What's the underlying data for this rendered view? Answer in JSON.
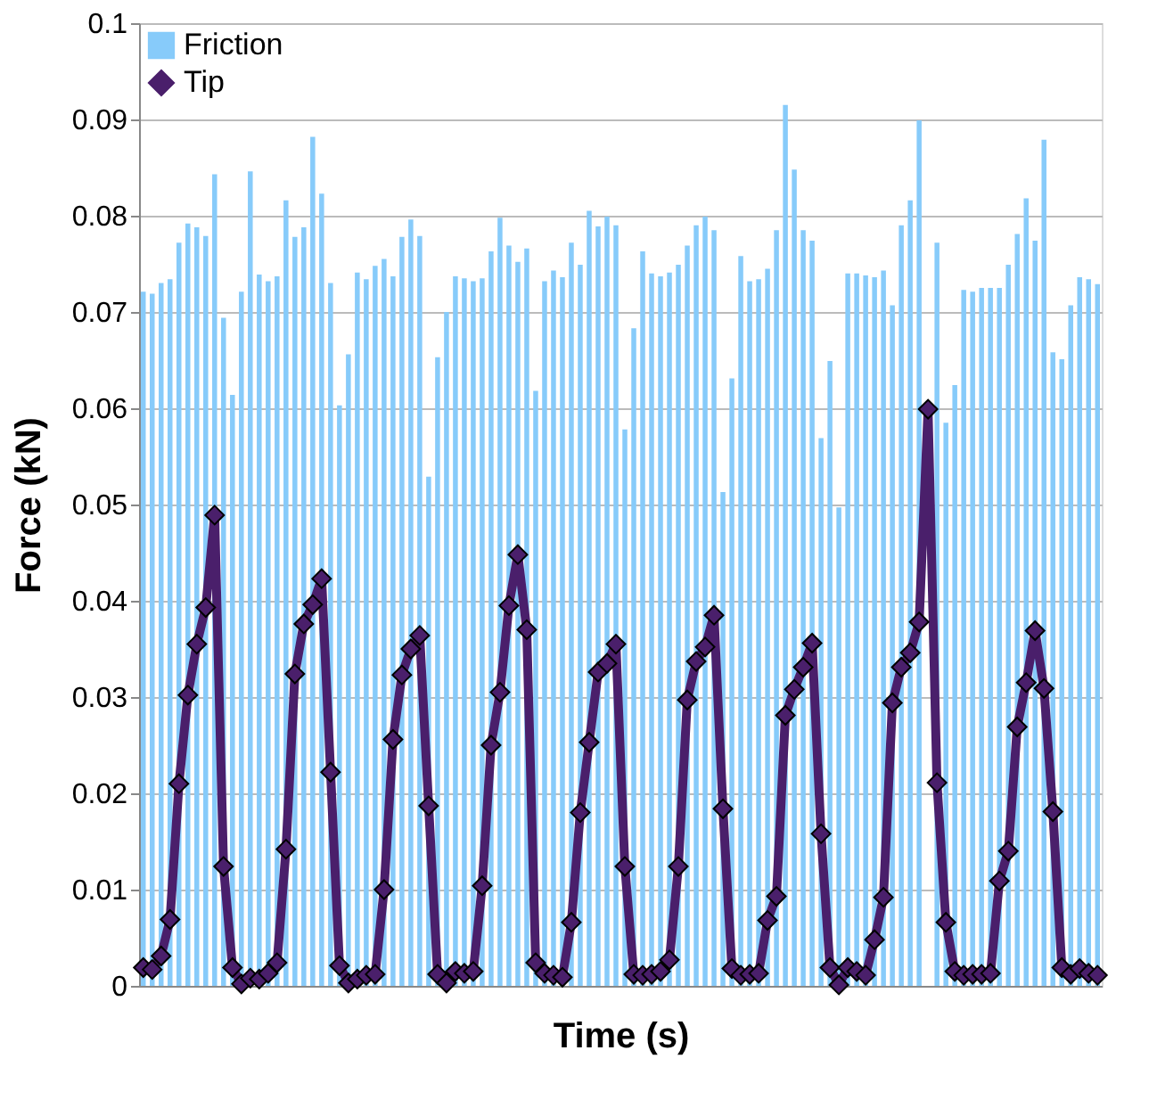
{
  "chart_data": {
    "type": "bar",
    "xlabel": "Time (s)",
    "ylabel": "Force (kN)",
    "categories": [
      null,
      null,
      null,
      null,
      null,
      null,
      null,
      null,
      null,
      null,
      null,
      null,
      null,
      null,
      null,
      null,
      null,
      null,
      null,
      null,
      null,
      null,
      null,
      null,
      null,
      null,
      null,
      null,
      null,
      null,
      null,
      null,
      null,
      null,
      null,
      null,
      null,
      null,
      null,
      null,
      null,
      null,
      null,
      null,
      null,
      null,
      null,
      null,
      null,
      null,
      null,
      null,
      null,
      null,
      null,
      null,
      null,
      null,
      null,
      null,
      null,
      null,
      null,
      null,
      null,
      null,
      null,
      null,
      null,
      null,
      null,
      null,
      null,
      null,
      null,
      null,
      null,
      null,
      null,
      null,
      null,
      null,
      null,
      null,
      null,
      null,
      null,
      null,
      null,
      null,
      null,
      null,
      null,
      null,
      null,
      null,
      null,
      null,
      null,
      null,
      null,
      null,
      null,
      null,
      null,
      null,
      null,
      null
    ],
    "series": [
      {
        "name": "Friction",
        "color": "#87cbfa",
        "values": [
          0.0721,
          0.0719,
          0.073,
          0.0734,
          0.0772,
          0.0792,
          0.0788,
          0.0779,
          0.0843,
          0.0694,
          0.0614,
          0.0721,
          0.0846,
          0.0739,
          0.0732,
          0.0737,
          0.0816,
          0.0778,
          0.0788,
          0.0882,
          0.0823,
          0.073,
          0.0603,
          0.0656,
          0.0741,
          0.0734,
          0.0748,
          0.0755,
          0.0737,
          0.0778,
          0.0796,
          0.0779,
          0.0529,
          0.0653,
          0.07,
          0.0737,
          0.0735,
          0.0732,
          0.0735,
          0.0763,
          0.0798,
          0.0769,
          0.0752,
          0.0766,
          0.0618,
          0.0732,
          0.0743,
          0.0736,
          0.0772,
          0.0749,
          0.0805,
          0.0789,
          0.0799,
          0.079,
          0.0578,
          0.0683,
          0.0763,
          0.074,
          0.0737,
          0.0741,
          0.0749,
          0.0769,
          0.079,
          0.0799,
          0.0785,
          0.0513,
          0.0631,
          0.0758,
          0.0732,
          0.0734,
          0.0745,
          0.0785,
          0.0915,
          0.0848,
          0.0785,
          0.0774,
          0.0569,
          0.0649,
          0.0497,
          0.074,
          0.074,
          0.0738,
          0.0736,
          0.0743,
          0.0707,
          0.079,
          0.0816,
          0.0899,
          null,
          0.0772,
          0.0585,
          0.0624,
          0.0723,
          0.0721,
          0.0725,
          0.0725,
          0.0725,
          0.0749,
          0.0781,
          0.0818,
          0.0774,
          0.0879,
          0.0658,
          0.0651,
          0.0707,
          0.0736,
          0.0734,
          0.0729
        ]
      },
      {
        "name": "Tip",
        "type": "line",
        "color": "#4a1f6b",
        "values": [
          0.0019,
          0.0017,
          0.0031,
          0.0069,
          0.021,
          0.0302,
          0.0355,
          0.0393,
          0.0489,
          0.0124,
          0.0019,
          0.0002,
          0.0008,
          0.0007,
          0.0013,
          0.0024,
          0.0142,
          0.0324,
          0.0376,
          0.0396,
          0.0423,
          0.0222,
          0.0021,
          0.0003,
          0.0007,
          0.0011,
          0.0012,
          0.01,
          0.0256,
          0.0323,
          0.035,
          0.0364,
          0.0187,
          0.0012,
          0.0003,
          0.0015,
          0.0013,
          0.0015,
          0.0104,
          0.025,
          0.0305,
          0.0395,
          0.0448,
          0.037,
          0.0024,
          0.0013,
          0.0011,
          0.0009,
          0.0066,
          0.018,
          0.0253,
          0.0326,
          0.0335,
          0.0355,
          0.0124,
          0.0012,
          0.0011,
          0.0012,
          0.0015,
          0.0027,
          0.0124,
          0.0297,
          0.0337,
          0.0352,
          0.0385,
          0.0184,
          0.0018,
          0.0011,
          0.0012,
          0.0013,
          0.0068,
          0.0093,
          0.0281,
          0.0308,
          0.0331,
          0.0356,
          0.0158,
          0.0019,
          0.0001,
          0.0019,
          0.0015,
          0.0011,
          0.0048,
          0.0092,
          0.0294,
          0.0331,
          0.0346,
          0.0378,
          0.0599,
          0.0211,
          0.0066,
          0.0015,
          0.0011,
          0.0012,
          0.0012,
          0.0013,
          0.0109,
          0.014,
          0.0269,
          0.0315,
          0.0369,
          0.0309,
          0.0181,
          0.0019,
          0.0012,
          0.0018,
          0.0013,
          0.0011
        ]
      }
    ],
    "ylim": [
      0,
      0.1
    ],
    "yticks": [
      0,
      0.01,
      0.02,
      0.03,
      0.04,
      0.05,
      0.06,
      0.07,
      0.08,
      0.09,
      0.1
    ],
    "grid": "y",
    "legend": "top left",
    "marker": "diamond",
    "line_style": "solid"
  }
}
